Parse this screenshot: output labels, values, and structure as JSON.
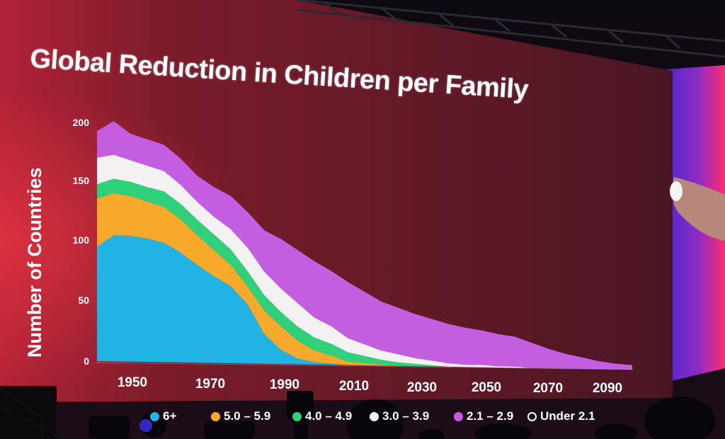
{
  "slide": {
    "title": "Global Reduction in Children per Family"
  },
  "chart_data": {
    "type": "area",
    "stacked": true,
    "title": "Global Reduction in Children per Family",
    "xlabel": "",
    "ylabel": "Number of Countries",
    "xlim": [
      1940,
      2100
    ],
    "ylim": [
      0,
      200
    ],
    "x_ticks": [
      "1950",
      "1970",
      "1990",
      "2010",
      "2030",
      "2050",
      "2070",
      "2090"
    ],
    "y_ticks": [
      "0",
      "50",
      "100",
      "150",
      "200"
    ],
    "x": [
      1940,
      1945,
      1950,
      1955,
      1960,
      1965,
      1970,
      1975,
      1980,
      1985,
      1990,
      1995,
      2000,
      2005,
      2010,
      2015,
      2020,
      2025,
      2030,
      2035,
      2040,
      2045,
      2050,
      2055,
      2060,
      2065,
      2070,
      2075,
      2080,
      2085,
      2090,
      2095,
      2100
    ],
    "series": [
      {
        "name": "6+",
        "color": "#1fb4e3",
        "values": [
          95,
          105,
          105,
          103,
          100,
          92,
          82,
          73,
          65,
          50,
          25,
          12,
          5,
          2,
          1,
          0,
          0,
          0,
          0,
          0,
          0,
          0,
          0,
          0,
          0,
          0,
          0,
          0,
          0,
          0,
          0,
          0,
          0
        ]
      },
      {
        "name": "5.0 – 5.9",
        "color": "#f7a92c",
        "values": [
          40,
          35,
          33,
          31,
          30,
          28,
          25,
          22,
          18,
          15,
          20,
          20,
          15,
          10,
          7,
          3,
          2,
          1,
          0,
          0,
          0,
          0,
          0,
          0,
          0,
          0,
          0,
          0,
          0,
          0,
          0,
          0,
          0
        ]
      },
      {
        "name": "4.0 – 4.9",
        "color": "#2fd07a",
        "values": [
          12,
          12,
          12,
          12,
          13,
          13,
          13,
          13,
          13,
          13,
          13,
          12,
          12,
          11,
          10,
          8,
          6,
          4,
          3,
          2,
          1,
          0,
          0,
          0,
          0,
          0,
          0,
          0,
          0,
          0,
          0,
          0,
          0
        ]
      },
      {
        "name": "3.0 – 3.9",
        "color": "#f4f1f3",
        "values": [
          22,
          20,
          18,
          18,
          17,
          16,
          15,
          15,
          17,
          20,
          20,
          20,
          20,
          17,
          15,
          12,
          10,
          8,
          7,
          5,
          4,
          3,
          2,
          2,
          1,
          1,
          0,
          0,
          0,
          0,
          0,
          0,
          0
        ]
      },
      {
        "name": "2.1 – 2.9",
        "color": "#c45ee0",
        "values": [
          22,
          28,
          22,
          22,
          22,
          22,
          22,
          25,
          28,
          30,
          35,
          42,
          45,
          48,
          47,
          48,
          45,
          42,
          40,
          38,
          36,
          34,
          32,
          30,
          28,
          26,
          22,
          17,
          13,
          10,
          7,
          5,
          4
        ]
      },
      {
        "name": "Under 2.1",
        "color": "#ffffff",
        "values": [
          0,
          0,
          0,
          0,
          0,
          0,
          0,
          0,
          0,
          0,
          0,
          0,
          0,
          0,
          0,
          0,
          0,
          0,
          0,
          0,
          0,
          0,
          0,
          0,
          0,
          0,
          0,
          0,
          0,
          0,
          0,
          0,
          0
        ]
      }
    ]
  }
}
